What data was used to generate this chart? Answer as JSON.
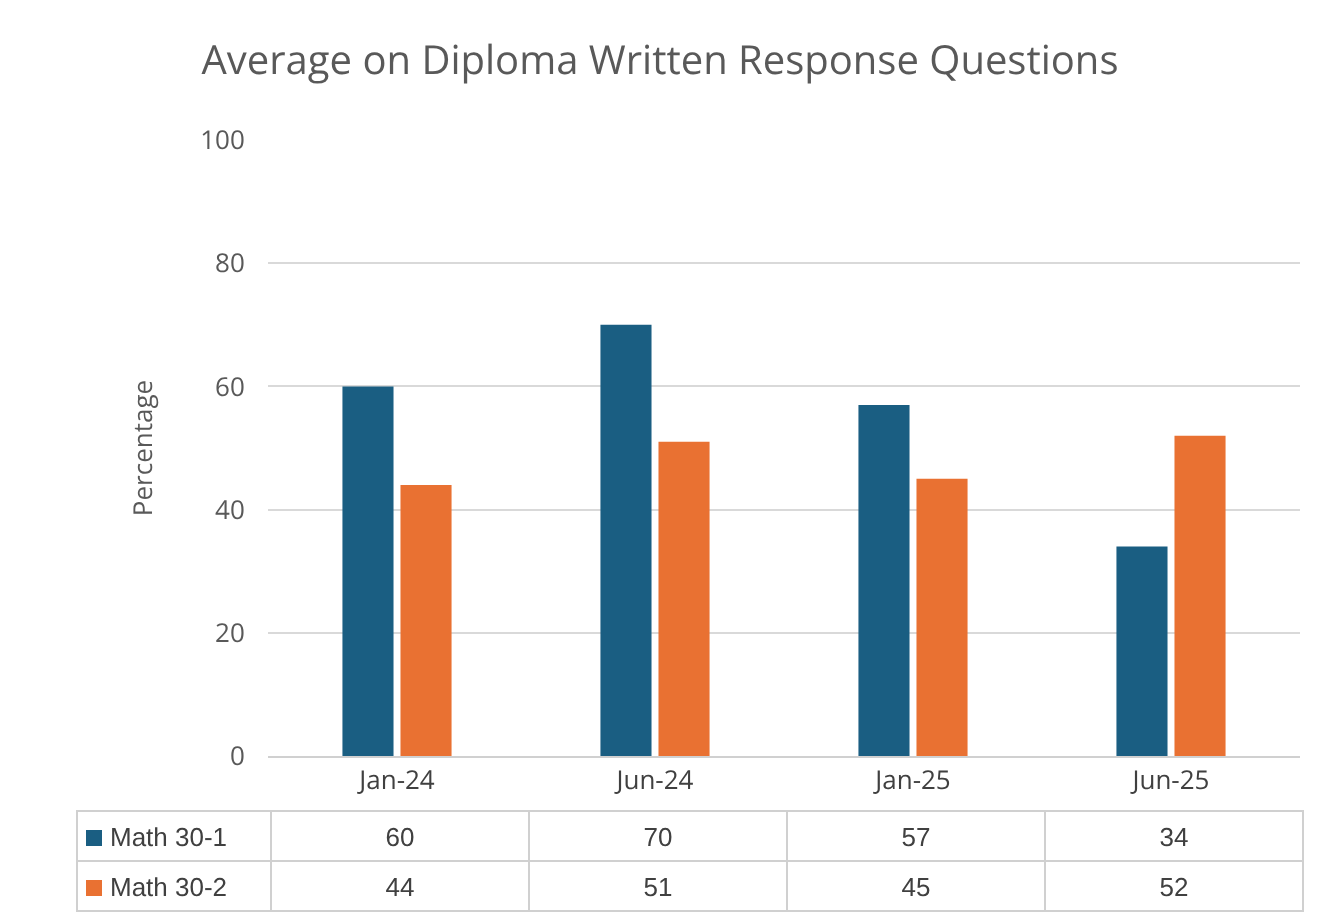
{
  "chart_data": {
    "type": "bar",
    "title": "Average on Diploma Written Response Questions",
    "ylabel": "Percentage",
    "categories": [
      "Jan-24",
      "Jun-24",
      "Jan-25",
      "Jun-25"
    ],
    "series": [
      {
        "name": "Math 30-1",
        "color": "#1a5e82",
        "values": [
          60,
          70,
          57,
          34
        ]
      },
      {
        "name": "Math 30-2",
        "color": "#e97132",
        "values": [
          44,
          51,
          45,
          52
        ]
      }
    ],
    "ylim": [
      0,
      100
    ],
    "yticks": [
      0,
      20,
      40,
      60,
      80,
      100
    ],
    "grid": "y",
    "legend": "bottom left",
    "data_labels": true
  }
}
